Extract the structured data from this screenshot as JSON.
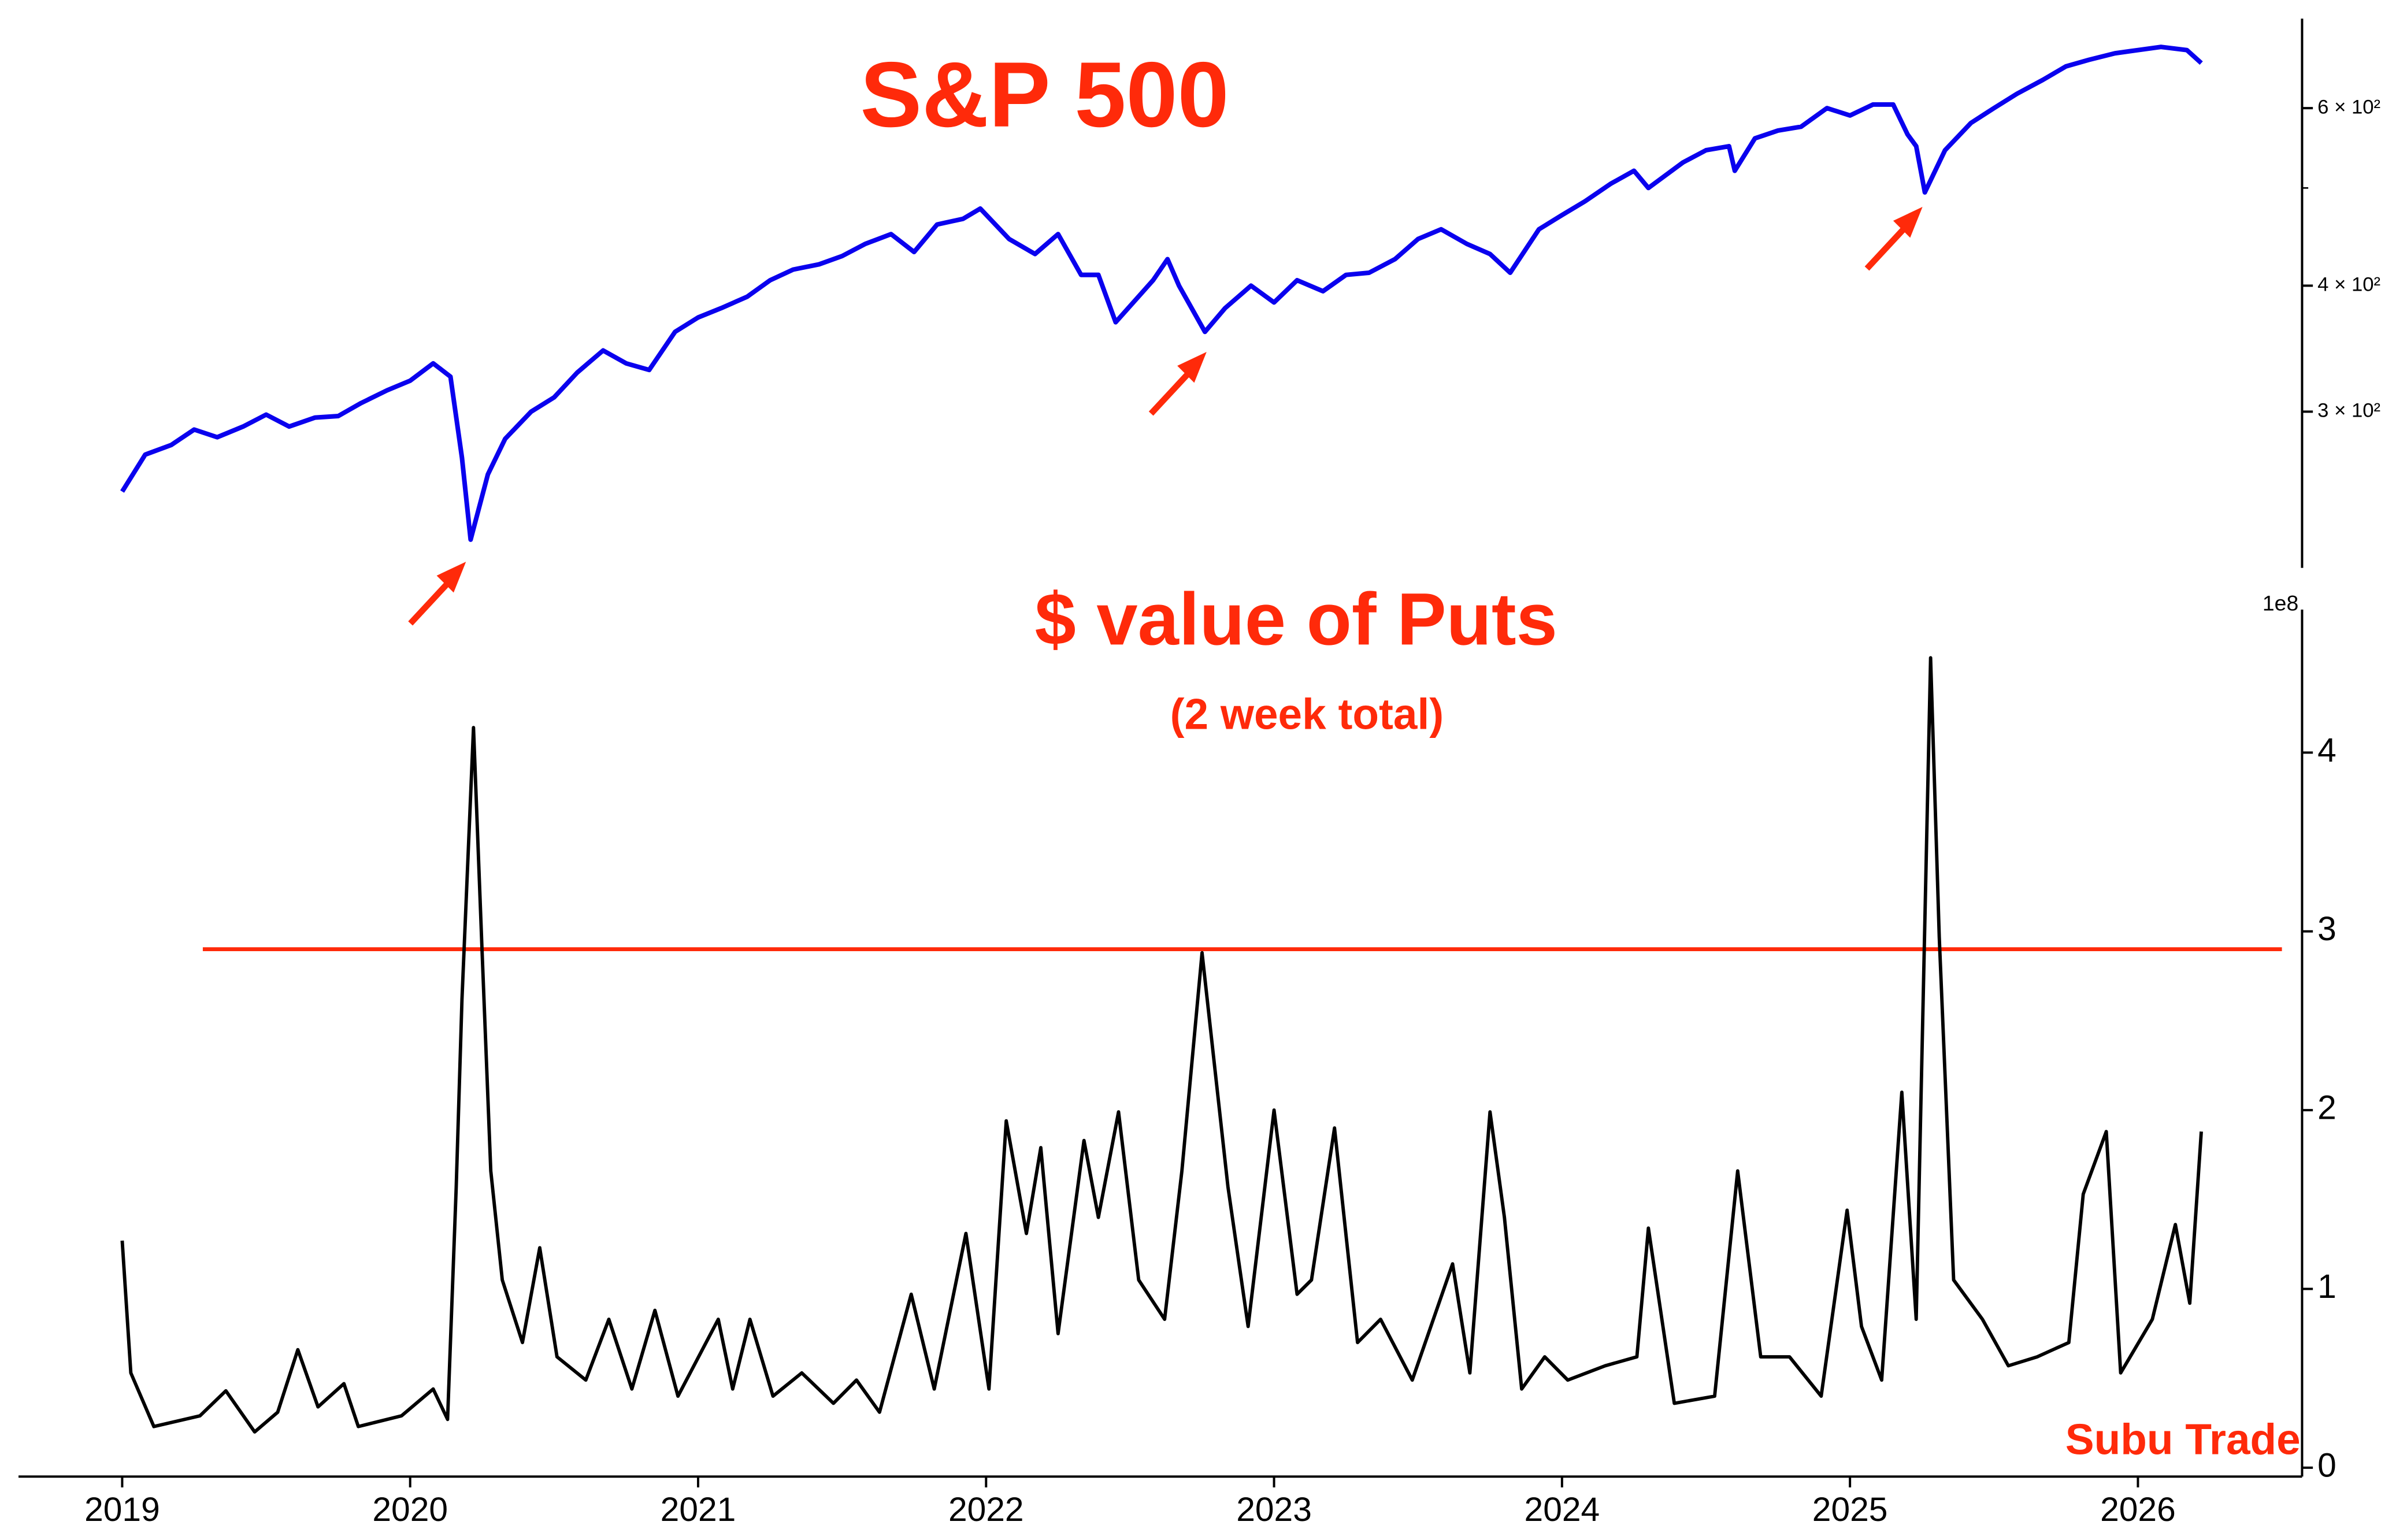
{
  "chart_data": [
    {
      "type": "line",
      "title": "S&P 500",
      "color": "#0a00ee",
      "ylog": true,
      "xlim": [
        2018.64,
        2026.57
      ],
      "ylim": [
        210,
        736
      ],
      "yticks": [
        {
          "value": 300,
          "label": "3 × 10²"
        },
        {
          "value": 400,
          "label": "4 × 10²"
        },
        {
          "value": 600,
          "label": "6 × 10²"
        }
      ],
      "yminorticks": [
        500
      ],
      "x": [
        2019.0,
        2019.08,
        2019.17,
        2019.25,
        2019.33,
        2019.42,
        2019.5,
        2019.58,
        2019.67,
        2019.75,
        2019.83,
        2019.92,
        2020.0,
        2020.08,
        2020.14,
        2020.18,
        2020.21,
        2020.27,
        2020.33,
        2020.42,
        2020.5,
        2020.58,
        2020.67,
        2020.75,
        2020.83,
        2020.92,
        2021.0,
        2021.08,
        2021.17,
        2021.25,
        2021.33,
        2021.42,
        2021.5,
        2021.58,
        2021.67,
        2021.75,
        2021.83,
        2021.92,
        2021.98,
        2022.08,
        2022.17,
        2022.25,
        2022.33,
        2022.39,
        2022.45,
        2022.58,
        2022.63,
        2022.67,
        2022.76,
        2022.83,
        2022.92,
        2023.0,
        2023.08,
        2023.17,
        2023.25,
        2023.33,
        2023.42,
        2023.5,
        2023.58,
        2023.67,
        2023.75,
        2023.82,
        2023.92,
        2024.0,
        2024.08,
        2024.17,
        2024.25,
        2024.3,
        2024.42,
        2024.5,
        2024.58,
        2024.6,
        2024.67,
        2024.75,
        2024.83,
        2024.92,
        2025.0,
        2025.08,
        2025.15,
        2025.2,
        2025.23,
        2025.26,
        2025.33,
        2025.42,
        2025.5,
        2025.58,
        2025.67,
        2025.75,
        2025.83,
        2025.92,
        2026.0,
        2026.08,
        2026.17,
        2026.22
      ],
      "values": [
        250,
        272,
        278,
        288,
        283,
        290,
        298,
        290,
        296,
        297,
        306,
        315,
        322,
        335,
        325,
        270,
        224,
        260,
        282,
        300,
        310,
        328,
        345,
        335,
        330,
        360,
        372,
        380,
        390,
        405,
        415,
        420,
        428,
        440,
        450,
        432,
        460,
        466,
        477,
        445,
        430,
        450,
        410,
        410,
        368,
        405,
        425,
        400,
        360,
        380,
        400,
        385,
        405,
        395,
        410,
        412,
        425,
        445,
        455,
        440,
        430,
        412,
        455,
        470,
        485,
        505,
        520,
        500,
        530,
        545,
        550,
        520,
        560,
        570,
        575,
        600,
        590,
        605,
        605,
        565,
        550,
        495,
        545,
        580,
        600,
        620,
        640,
        660,
        670,
        680,
        685,
        690,
        685,
        665
      ]
    },
    {
      "type": "line",
      "title": "$ value of Puts",
      "subtitle": "(2 week total)",
      "y_offset_label": "1e8",
      "annotation": "Subu Trade",
      "color": "#000000",
      "xlim": [
        2018.64,
        2026.57
      ],
      "ylim": [
        -0.05,
        4.8
      ],
      "xticks": [
        2019,
        2020,
        2021,
        2022,
        2023,
        2024,
        2025,
        2026
      ],
      "yticks": [
        0,
        1,
        2,
        3,
        4
      ],
      "hline": {
        "value": 2.9,
        "xmin": 2019.28,
        "xmax": 2026.5,
        "color": "#ff2a0a"
      },
      "x": [
        2019.0,
        2019.03,
        2019.11,
        2019.27,
        2019.36,
        2019.46,
        2019.54,
        2019.61,
        2019.68,
        2019.77,
        2019.82,
        2019.97,
        2020.08,
        2020.13,
        2020.16,
        2020.18,
        2020.22,
        2020.25,
        2020.28,
        2020.32,
        2020.39,
        2020.45,
        2020.51,
        2020.61,
        2020.69,
        2020.77,
        2020.85,
        2020.93,
        2021.07,
        2021.12,
        2021.18,
        2021.26,
        2021.36,
        2021.47,
        2021.55,
        2021.63,
        2021.74,
        2021.82,
        2021.93,
        2022.01,
        2022.07,
        2022.14,
        2022.19,
        2022.25,
        2022.34,
        2022.39,
        2022.46,
        2022.53,
        2022.62,
        2022.68,
        2022.75,
        2022.84,
        2022.91,
        2023.0,
        2023.08,
        2023.13,
        2023.21,
        2023.29,
        2023.37,
        2023.48,
        2023.62,
        2023.68,
        2023.75,
        2023.8,
        2023.86,
        2023.94,
        2024.02,
        2024.15,
        2024.26,
        2024.3,
        2024.39,
        2024.53,
        2024.61,
        2024.69,
        2024.79,
        2024.9,
        2024.99,
        2025.04,
        2025.11,
        2025.18,
        2025.23,
        2025.28,
        2025.31,
        2025.36,
        2025.46,
        2025.55,
        2025.65,
        2025.76,
        2025.81,
        2025.89,
        2025.94,
        2026.05,
        2026.13,
        2026.18,
        2026.22
      ],
      "values": [
        1.27,
        0.53,
        0.23,
        0.29,
        0.43,
        0.2,
        0.31,
        0.66,
        0.34,
        0.47,
        0.23,
        0.29,
        0.44,
        0.27,
        1.57,
        2.62,
        4.14,
        2.88,
        1.66,
        1.05,
        0.7,
        1.23,
        0.62,
        0.49,
        0.83,
        0.44,
        0.88,
        0.4,
        0.83,
        0.44,
        0.83,
        0.4,
        0.53,
        0.36,
        0.49,
        0.31,
        0.97,
        0.44,
        1.31,
        0.44,
        1.94,
        1.31,
        1.79,
        0.75,
        1.83,
        1.4,
        1.99,
        1.05,
        0.83,
        1.66,
        2.88,
        1.57,
        0.79,
        2.0,
        0.97,
        1.05,
        1.9,
        0.7,
        0.83,
        0.49,
        1.14,
        0.53,
        1.99,
        1.4,
        0.44,
        0.62,
        0.49,
        0.57,
        0.62,
        1.34,
        0.36,
        0.4,
        1.66,
        0.62,
        0.62,
        0.4,
        1.44,
        0.79,
        0.49,
        2.1,
        0.83,
        4.53,
        2.97,
        1.05,
        0.83,
        0.57,
        0.62,
        0.7,
        1.53,
        1.88,
        0.53,
        0.83,
        1.36,
        0.92,
        1.88
      ]
    }
  ]
}
